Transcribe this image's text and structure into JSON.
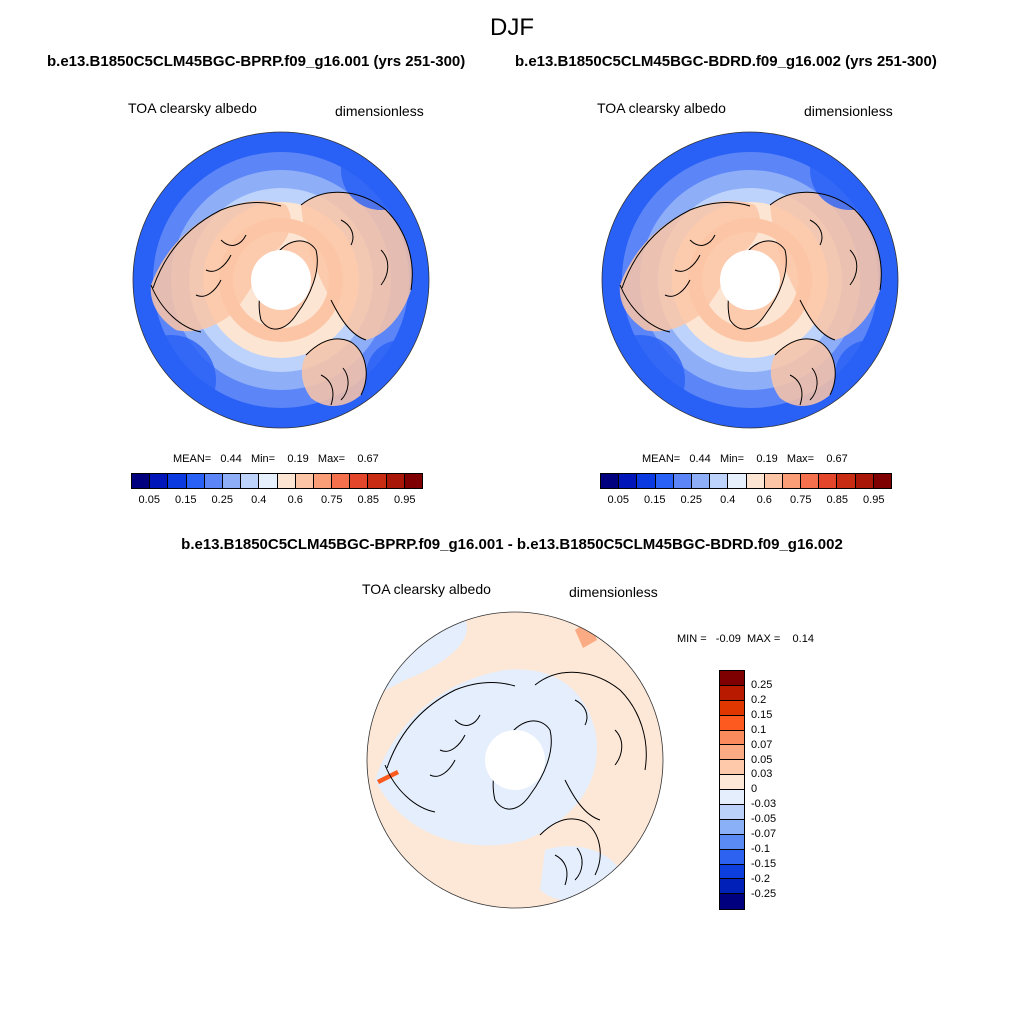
{
  "title": "DJF",
  "case1": "b.e13.B1850C5CLM45BGC-BPRP.f09_g16.001 (yrs 251-300)",
  "case2": "b.e13.B1850C5CLM45BGC-BDRD.f09_g16.002 (yrs 251-300)",
  "diff_title": "b.e13.B1850C5CLM45BGC-BPRP.f09_g16.001 - b.e13.B1850C5CLM45BGC-BDRD.f09_g16.002",
  "panels": [
    {
      "variable": "TOA clearsky albedo",
      "units": "dimensionless",
      "stats": "MEAN=   0.44   Min=    0.19   Max=    0.67"
    },
    {
      "variable": "TOA clearsky albedo",
      "units": "dimensionless",
      "stats": "MEAN=   0.44   Min=    0.19   Max=    0.67"
    }
  ],
  "diff_panel": {
    "variable": "TOA clearsky albedo",
    "units": "dimensionless",
    "stats": "MIN =   -0.09  MAX =    0.14"
  },
  "colorbar_main": {
    "labels": [
      "0.05",
      "0.15",
      "0.25",
      "0.4",
      "0.6",
      "0.75",
      "0.85",
      "0.95"
    ],
    "colors": [
      "#00007f",
      "#0016b9",
      "#0a3ae0",
      "#2960f5",
      "#5c86f7",
      "#8eaef8",
      "#bdd3fb",
      "#e6f0fd",
      "#fde5d3",
      "#fcc6a6",
      "#fa9e78",
      "#f5714e",
      "#e4462b",
      "#c82c12",
      "#a81708",
      "#7f0000"
    ]
  },
  "colorbar_diff": {
    "labels": [
      "0.25",
      "0.2",
      "0.15",
      "0.1",
      "0.07",
      "0.05",
      "0.03",
      "0",
      "-0.03",
      "-0.05",
      "-0.07",
      "-0.1",
      "-0.15",
      "-0.2",
      "-0.25"
    ],
    "colors": [
      "#7f0000",
      "#b81a00",
      "#e03600",
      "#fc5a1f",
      "#fa8b5c",
      "#fbab84",
      "#fdc9aa",
      "#fde8d8",
      "#e4eefc",
      "#bcd1fa",
      "#8ab0f7",
      "#5a8bf5",
      "#2d62f0",
      "#0d3fdf",
      "#0020b8",
      "#00007f"
    ]
  }
}
